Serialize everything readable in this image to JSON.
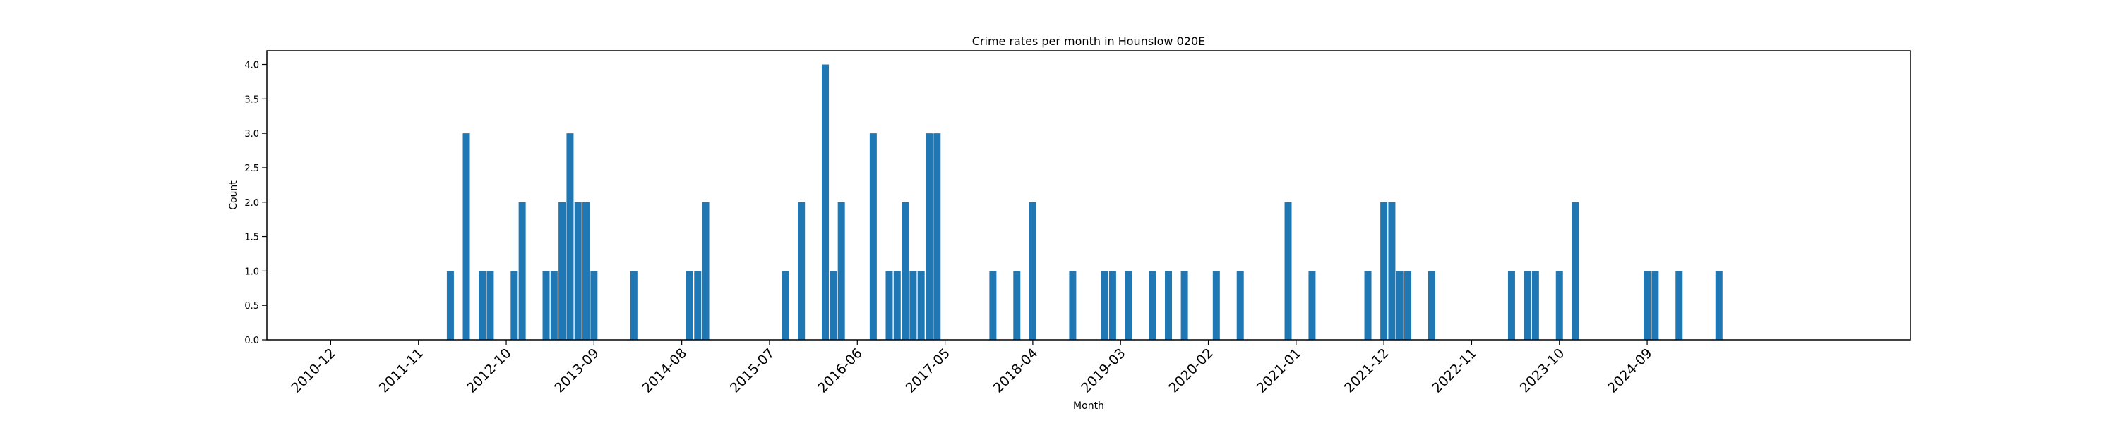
{
  "chart_data": {
    "type": "bar",
    "title": "Crime rates per month in Hounslow 020E",
    "xlabel": "Month",
    "ylabel": "Count",
    "ylim": [
      0,
      4.2
    ],
    "yticks": [
      "0.0",
      "0.5",
      "1.0",
      "1.5",
      "2.0",
      "2.5",
      "3.0",
      "3.5",
      "4.0"
    ],
    "xlim": [
      "2010-04",
      "2027-06"
    ],
    "xticks": [
      "2010-12",
      "2011-11",
      "2012-10",
      "2013-09",
      "2014-08",
      "2015-07",
      "2016-06",
      "2017-05",
      "2018-04",
      "2019-03",
      "2020-02",
      "2021-01",
      "2021-12",
      "2022-11",
      "2023-10",
      "2024-09"
    ],
    "grid": false,
    "bar_color": "#1f77b4",
    "x": [
      "2012-03",
      "2012-05",
      "2012-07",
      "2012-08",
      "2012-11",
      "2012-12",
      "2013-03",
      "2013-04",
      "2013-05",
      "2013-06",
      "2013-07",
      "2013-08",
      "2013-09",
      "2014-02",
      "2014-09",
      "2014-10",
      "2014-11",
      "2015-09",
      "2015-11",
      "2016-02",
      "2016-03",
      "2016-04",
      "2016-08",
      "2016-10",
      "2016-11",
      "2016-12",
      "2017-01",
      "2017-02",
      "2017-03",
      "2017-04",
      "2017-11",
      "2018-02",
      "2018-04",
      "2018-09",
      "2019-01",
      "2019-02",
      "2019-04",
      "2019-07",
      "2019-09",
      "2019-11",
      "2020-03",
      "2020-06",
      "2020-12",
      "2021-03",
      "2021-10",
      "2021-12",
      "2022-01",
      "2022-02",
      "2022-03",
      "2022-06",
      "2023-04",
      "2023-06",
      "2023-07",
      "2023-10",
      "2023-12",
      "2024-09",
      "2024-10",
      "2025-01",
      "2025-06"
    ],
    "values": [
      1,
      3,
      1,
      1,
      1,
      2,
      1,
      1,
      2,
      3,
      2,
      2,
      1,
      1,
      1,
      1,
      2,
      1,
      2,
      4,
      1,
      2,
      3,
      1,
      1,
      2,
      1,
      1,
      3,
      3,
      1,
      1,
      2,
      1,
      1,
      1,
      1,
      1,
      1,
      1,
      1,
      1,
      2,
      1,
      1,
      2,
      2,
      1,
      1,
      1,
      1,
      1,
      1,
      1,
      2,
      1,
      1,
      1,
      1
    ]
  }
}
